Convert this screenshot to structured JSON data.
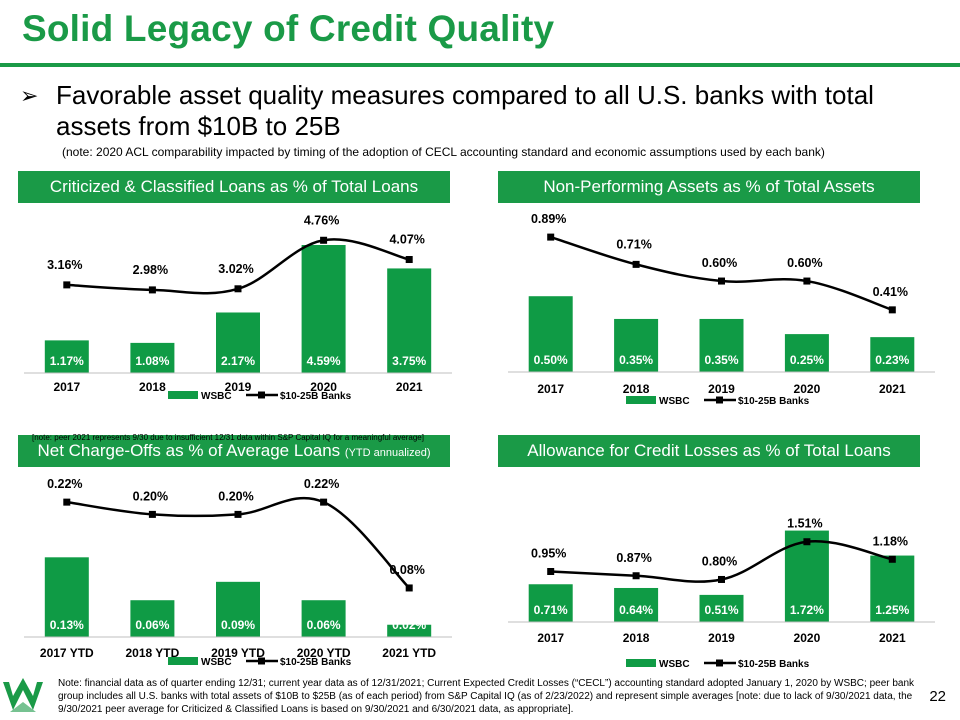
{
  "slide": {
    "title": "Solid Legacy of Credit Quality",
    "bullet": "Favorable asset quality measures compared to all U.S. banks with total assets from $10B to 25B",
    "note": "(note: 2020 ACL comparability impacted by timing of the adoption of CECL accounting standard and economic assumptions used by each bank)",
    "footer": "Note: financial data as of quarter ending 12/31; current year data as of 12/31/2021; Current Expected Credit Losses (“CECL”) accounting standard adopted January 1, 2020 by WSBC; peer bank group includes all U.S. banks with total assets of $10B to $25B (as of each period) from S&P Capital IQ (as of 2/23/2022) and represent simple averages [note: due to lack of 9/30/2021 data, the 9/30/2021 peer average for Criticized & Classified Loans is based on 9/30/2021 and 6/30/2021 data, as appropriate].",
    "page_number": "22",
    "colors": {
      "brand_green": "#1a9a47",
      "bar_green": "#0f9b45",
      "line": "#000000"
    }
  },
  "legend": {
    "bar_label": "WSBC",
    "line_label": "$10-25B Banks"
  },
  "panels": {
    "p1": {
      "title": "Criticized & Classified Loans as % of Total Loans",
      "note": "[note: peer 2021 represents 9/30 due to insufficient 12/31 data within S&P Capital IQ for a meaningful average]"
    },
    "p2": {
      "title": "Non-Performing Assets as % of Total Assets"
    },
    "p3": {
      "title": "Net Charge-Offs as % of Average Loans",
      "title_small": "(YTD annualized)"
    },
    "p4": {
      "title": "Allowance for Credit Losses as % of Total Loans"
    }
  },
  "chart_data": [
    {
      "id": "c1",
      "type": "bar",
      "title": "Criticized & Classified Loans as % of Total Loans",
      "categories": [
        "2017",
        "2018",
        "2019",
        "2020",
        "2021"
      ],
      "series": [
        {
          "name": "WSBC",
          "kind": "bar",
          "values": [
            1.17,
            1.08,
            2.17,
            4.59,
            3.75
          ],
          "labels": [
            "1.17%",
            "1.08%",
            "2.17%",
            "4.59%",
            "3.75%"
          ]
        },
        {
          "name": "$10-25B Banks",
          "kind": "line",
          "values": [
            3.16,
            2.98,
            3.02,
            4.76,
            4.07
          ],
          "labels": [
            "3.16%",
            "2.98%",
            "3.02%",
            "4.76%",
            "4.07%"
          ]
        }
      ],
      "ylim": [
        0,
        5.2
      ]
    },
    {
      "id": "c2",
      "type": "bar",
      "title": "Non-Performing Assets as % of Total Assets",
      "categories": [
        "2017",
        "2018",
        "2019",
        "2020",
        "2021"
      ],
      "series": [
        {
          "name": "WSBC",
          "kind": "bar",
          "values": [
            0.5,
            0.35,
            0.35,
            0.25,
            0.23
          ],
          "labels": [
            "0.50%",
            "0.35%",
            "0.35%",
            "0.25%",
            "0.23%"
          ]
        },
        {
          "name": "$10-25B Banks",
          "kind": "line",
          "values": [
            0.89,
            0.71,
            0.6,
            0.6,
            0.41
          ],
          "labels": [
            "0.89%",
            "0.71%",
            "0.60%",
            "0.60%",
            "0.41%"
          ]
        }
      ],
      "ylim": [
        0,
        0.95
      ]
    },
    {
      "id": "c3",
      "type": "bar",
      "title": "Net Charge-Offs as % of Average Loans (YTD annualized)",
      "categories": [
        "2017 YTD",
        "2018 YTD",
        "2019 YTD",
        "2020 YTD",
        "2021 YTD"
      ],
      "series": [
        {
          "name": "WSBC",
          "kind": "bar",
          "values": [
            0.13,
            0.06,
            0.09,
            0.06,
            0.02
          ],
          "labels": [
            "0.13%",
            "0.06%",
            "0.09%",
            "0.06%",
            "0.02%"
          ]
        },
        {
          "name": "$10-25B Banks",
          "kind": "line",
          "values": [
            0.22,
            0.2,
            0.2,
            0.22,
            0.08
          ],
          "labels": [
            "0.22%",
            "0.20%",
            "0.20%",
            "0.22%",
            "0.08%"
          ]
        }
      ],
      "ylim": [
        0,
        0.23
      ]
    },
    {
      "id": "c4",
      "type": "bar",
      "title": "Allowance for Credit Losses as % of Total Loans",
      "categories": [
        "2017",
        "2018",
        "2019",
        "2020",
        "2021"
      ],
      "series": [
        {
          "name": "WSBC",
          "kind": "bar",
          "values": [
            0.71,
            0.64,
            0.51,
            1.72,
            1.25
          ],
          "labels": [
            "0.71%",
            "0.64%",
            "0.51%",
            "1.72%",
            "1.25%"
          ]
        },
        {
          "name": "$10-25B Banks",
          "kind": "line",
          "values": [
            0.95,
            0.87,
            0.8,
            1.51,
            1.18
          ],
          "labels": [
            "0.95%",
            "0.87%",
            "0.80%",
            "1.51%",
            "1.18%"
          ]
        }
      ],
      "ylim": [
        0,
        1.9
      ]
    }
  ]
}
